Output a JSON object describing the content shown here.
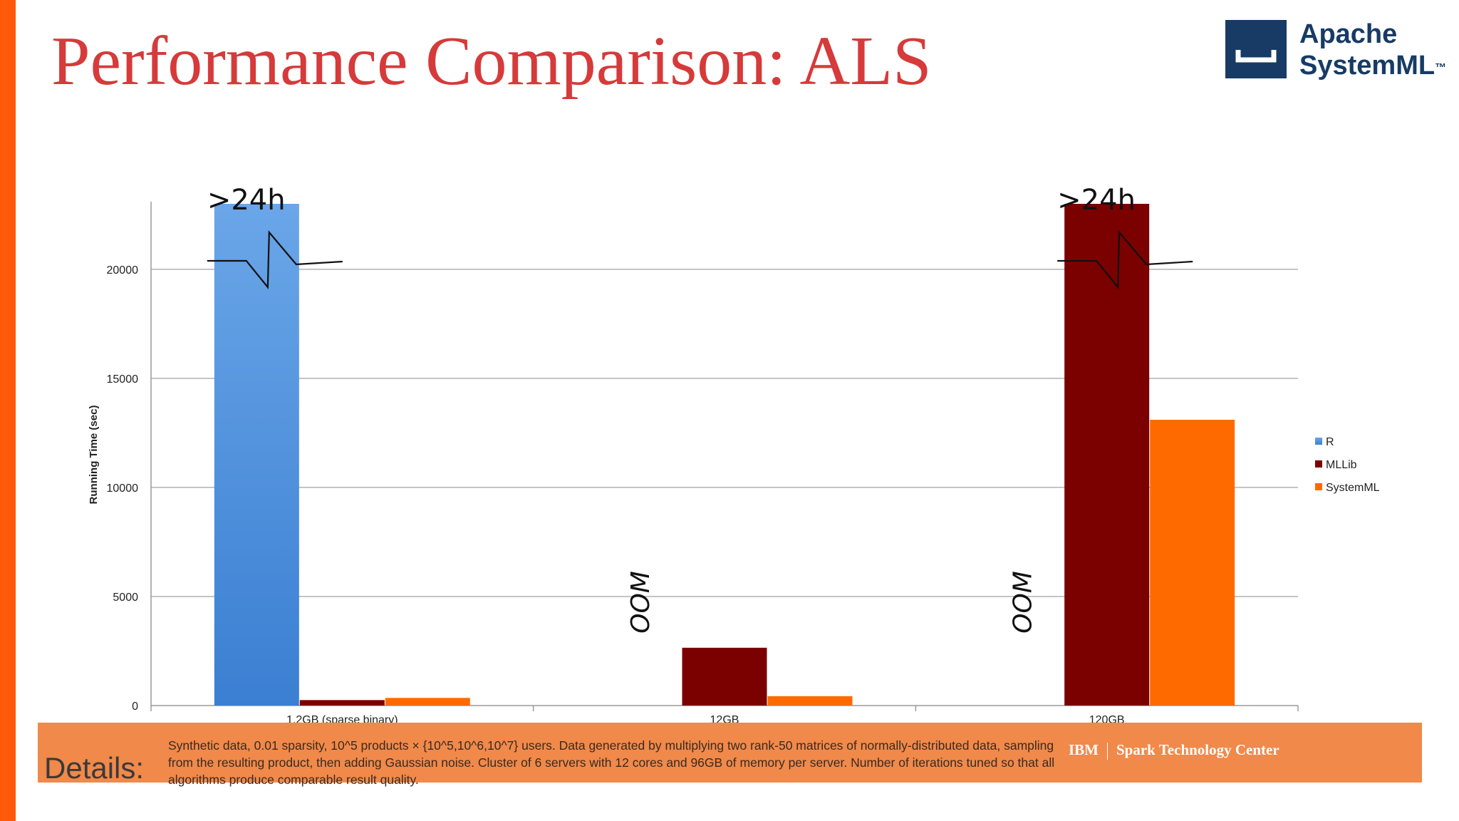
{
  "slide": {
    "title": "Performance Comparison: ALS",
    "logo_line1": "Apache",
    "logo_line2": "SystemML",
    "logo_tm": "™"
  },
  "chart_data": {
    "type": "bar",
    "categories": [
      "1.2GB (sparse binary)",
      "12GB",
      "120GB"
    ],
    "ylabel": "Running Time (sec)",
    "ylim": [
      0,
      23000
    ],
    "yticks": [
      0,
      5000,
      10000,
      15000,
      20000
    ],
    "grid": true,
    "legend_position": "right",
    "series": [
      {
        "name": "R",
        "color": "#4a8fdc",
        "values": [
          23000,
          null,
          null
        ]
      },
      {
        "name": "MLLib",
        "color": "#7b0000",
        "values": [
          250,
          2650,
          23000
        ]
      },
      {
        "name": "SystemML",
        "color": "#ff6a00",
        "values": [
          350,
          430,
          13100
        ]
      }
    ],
    "annotations": [
      {
        "text": ">24h",
        "category": 0,
        "series": "R"
      },
      {
        "text": ">24h",
        "category": 2,
        "series": "MLLib"
      },
      {
        "text": "OOM",
        "category": 1,
        "series": "R"
      },
      {
        "text": "OOM",
        "category": 2,
        "series": "R"
      }
    ]
  },
  "footer": {
    "details_label": "Details:",
    "details_text": "Synthetic data, 0.01 sparsity, 10^5 products × {10^5,10^6,10^7} users. Data generated by multiplying two rank-50 matrices of normally-distributed data, sampling from the resulting product, then adding Gaussian noise. Cluster of 6 servers with 12 cores and 96GB of memory per server. Number of iterations tuned so that all algorithms produce comparable result quality.",
    "ibm": "IBM",
    "stc": "Spark Technology Center"
  }
}
